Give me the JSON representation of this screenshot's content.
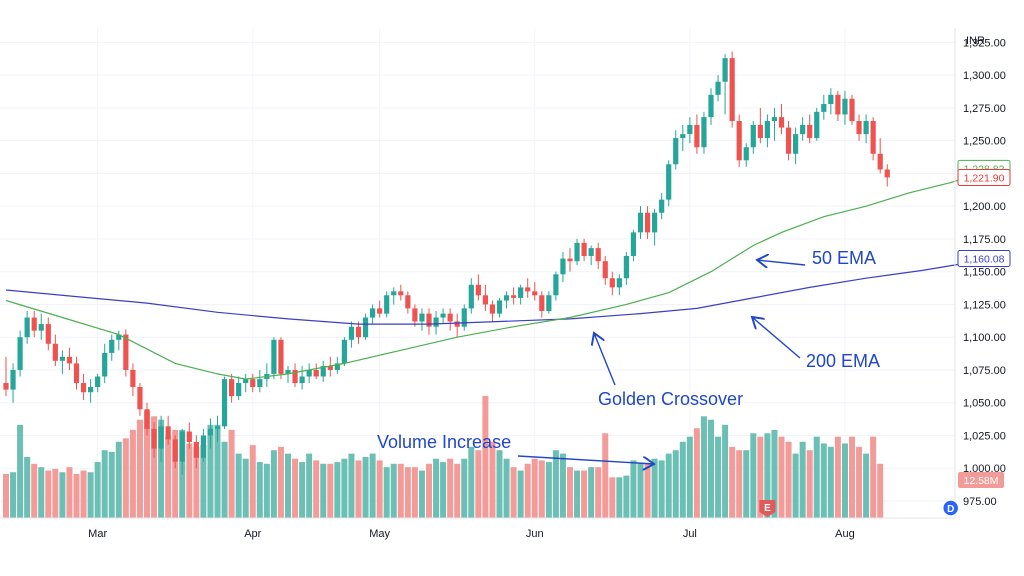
{
  "chart_data": {
    "type": "candlestick",
    "currency": "INR",
    "ylim": [
      962,
      1336
    ],
    "y_ticks": [
      "1,325.00",
      "1,300.00",
      "1,275.00",
      "1,250.00",
      "1,225.00",
      "1,200.00",
      "1,175.00",
      "1,150.00",
      "1,125.00",
      "1,100.00",
      "1,075.00",
      "1,050.00",
      "1,025.00",
      "1,000.00",
      "975.00"
    ],
    "y_tick_values": [
      1325,
      1300,
      1275,
      1250,
      1225,
      1200,
      1175,
      1150,
      1125,
      1100,
      1075,
      1050,
      1025,
      1000,
      975
    ],
    "x_ticks": [
      {
        "label": "Mar",
        "index": 13
      },
      {
        "label": "Apr",
        "index": 35
      },
      {
        "label": "May",
        "index": 53
      },
      {
        "label": "Jun",
        "index": 75
      },
      {
        "label": "Jul",
        "index": 97
      },
      {
        "label": "Aug",
        "index": 119
      }
    ],
    "candles": [
      [
        1065,
        1085,
        1055,
        1060
      ],
      [
        1060,
        1080,
        1050,
        1075
      ],
      [
        1075,
        1105,
        1070,
        1100
      ],
      [
        1100,
        1120,
        1095,
        1115
      ],
      [
        1115,
        1120,
        1100,
        1105
      ],
      [
        1105,
        1118,
        1098,
        1110
      ],
      [
        1110,
        1115,
        1090,
        1095
      ],
      [
        1095,
        1102,
        1078,
        1082
      ],
      [
        1082,
        1090,
        1072,
        1085
      ],
      [
        1085,
        1092,
        1075,
        1080
      ],
      [
        1080,
        1085,
        1060,
        1065
      ],
      [
        1065,
        1072,
        1052,
        1058
      ],
      [
        1058,
        1068,
        1050,
        1062
      ],
      [
        1062,
        1072,
        1058,
        1070
      ],
      [
        1070,
        1095,
        1065,
        1088
      ],
      [
        1088,
        1102,
        1082,
        1098
      ],
      [
        1098,
        1105,
        1090,
        1102
      ],
      [
        1102,
        1106,
        1070,
        1075
      ],
      [
        1075,
        1080,
        1055,
        1062
      ],
      [
        1062,
        1065,
        1040,
        1045
      ],
      [
        1045,
        1050,
        1025,
        1030
      ],
      [
        1030,
        1035,
        1008,
        1015
      ],
      [
        1015,
        1040,
        1005,
        1032
      ],
      [
        1032,
        1040,
        1018,
        1022
      ],
      [
        1022,
        1025,
        1000,
        1005
      ],
      [
        1005,
        1030,
        995,
        1028
      ],
      [
        1028,
        1035,
        1015,
        1020
      ],
      [
        1020,
        1025,
        1000,
        1008
      ],
      [
        1008,
        1030,
        1005,
        1025
      ],
      [
        1025,
        1038,
        1015,
        1030
      ],
      [
        1030,
        1040,
        1020,
        1032
      ],
      [
        1032,
        1070,
        1030,
        1068
      ],
      [
        1068,
        1072,
        1050,
        1055
      ],
      [
        1055,
        1070,
        1052,
        1065
      ],
      [
        1065,
        1072,
        1058,
        1068
      ],
      [
        1068,
        1072,
        1058,
        1062
      ],
      [
        1062,
        1075,
        1058,
        1068
      ],
      [
        1068,
        1080,
        1062,
        1072
      ],
      [
        1072,
        1100,
        1068,
        1098
      ],
      [
        1098,
        1100,
        1068,
        1072
      ],
      [
        1072,
        1078,
        1065,
        1075
      ],
      [
        1075,
        1080,
        1062,
        1065
      ],
      [
        1065,
        1078,
        1060,
        1070
      ],
      [
        1070,
        1080,
        1065,
        1075
      ],
      [
        1075,
        1080,
        1068,
        1070
      ],
      [
        1070,
        1082,
        1066,
        1078
      ],
      [
        1078,
        1085,
        1070,
        1075
      ],
      [
        1075,
        1085,
        1072,
        1080
      ],
      [
        1080,
        1100,
        1078,
        1098
      ],
      [
        1098,
        1112,
        1092,
        1108
      ],
      [
        1108,
        1112,
        1095,
        1100
      ],
      [
        1100,
        1118,
        1098,
        1115
      ],
      [
        1115,
        1125,
        1110,
        1122
      ],
      [
        1122,
        1128,
        1115,
        1118
      ],
      [
        1118,
        1135,
        1115,
        1132
      ],
      [
        1132,
        1138,
        1125,
        1135
      ],
      [
        1135,
        1140,
        1128,
        1132
      ],
      [
        1132,
        1135,
        1118,
        1122
      ],
      [
        1122,
        1125,
        1108,
        1112
      ],
      [
        1112,
        1122,
        1105,
        1118
      ],
      [
        1118,
        1122,
        1102,
        1108
      ],
      [
        1108,
        1120,
        1102,
        1115
      ],
      [
        1115,
        1122,
        1110,
        1118
      ],
      [
        1118,
        1122,
        1105,
        1112
      ],
      [
        1112,
        1118,
        1100,
        1108
      ],
      [
        1108,
        1125,
        1105,
        1122
      ],
      [
        1122,
        1145,
        1118,
        1140
      ],
      [
        1140,
        1148,
        1128,
        1132
      ],
      [
        1132,
        1140,
        1120,
        1125
      ],
      [
        1125,
        1128,
        1112,
        1118
      ],
      [
        1118,
        1130,
        1115,
        1128
      ],
      [
        1128,
        1135,
        1122,
        1132
      ],
      [
        1132,
        1138,
        1125,
        1130
      ],
      [
        1130,
        1140,
        1125,
        1138
      ],
      [
        1138,
        1145,
        1130,
        1135
      ],
      [
        1135,
        1142,
        1128,
        1132
      ],
      [
        1132,
        1135,
        1115,
        1120
      ],
      [
        1120,
        1135,
        1118,
        1132
      ],
      [
        1132,
        1150,
        1128,
        1148
      ],
      [
        1148,
        1165,
        1142,
        1160
      ],
      [
        1160,
        1168,
        1150,
        1158
      ],
      [
        1158,
        1175,
        1155,
        1172
      ],
      [
        1172,
        1175,
        1158,
        1162
      ],
      [
        1162,
        1170,
        1155,
        1168
      ],
      [
        1168,
        1172,
        1152,
        1158
      ],
      [
        1158,
        1162,
        1140,
        1145
      ],
      [
        1145,
        1150,
        1132,
        1138
      ],
      [
        1138,
        1148,
        1132,
        1145
      ],
      [
        1145,
        1165,
        1140,
        1162
      ],
      [
        1162,
        1182,
        1158,
        1180
      ],
      [
        1180,
        1200,
        1175,
        1195
      ],
      [
        1195,
        1200,
        1175,
        1180
      ],
      [
        1180,
        1198,
        1170,
        1195
      ],
      [
        1195,
        1210,
        1190,
        1205
      ],
      [
        1205,
        1235,
        1200,
        1232
      ],
      [
        1232,
        1258,
        1228,
        1252
      ],
      [
        1252,
        1262,
        1242,
        1255
      ],
      [
        1255,
        1268,
        1248,
        1262
      ],
      [
        1262,
        1270,
        1240,
        1245
      ],
      [
        1245,
        1272,
        1240,
        1268
      ],
      [
        1268,
        1290,
        1262,
        1285
      ],
      [
        1285,
        1300,
        1280,
        1295
      ],
      [
        1295,
        1316,
        1270,
        1313
      ],
      [
        1313,
        1318,
        1260,
        1265
      ],
      [
        1265,
        1270,
        1230,
        1235
      ],
      [
        1235,
        1248,
        1230,
        1245
      ],
      [
        1245,
        1265,
        1240,
        1262
      ],
      [
        1262,
        1275,
        1248,
        1252
      ],
      [
        1252,
        1270,
        1245,
        1265
      ],
      [
        1265,
        1275,
        1250,
        1268
      ],
      [
        1268,
        1278,
        1255,
        1260
      ],
      [
        1260,
        1265,
        1235,
        1240
      ],
      [
        1240,
        1260,
        1232,
        1255
      ],
      [
        1255,
        1268,
        1250,
        1262
      ],
      [
        1262,
        1270,
        1248,
        1252
      ],
      [
        1252,
        1275,
        1250,
        1272
      ],
      [
        1272,
        1285,
        1266,
        1278
      ],
      [
        1278,
        1290,
        1270,
        1285
      ],
      [
        1285,
        1288,
        1265,
        1270
      ],
      [
        1270,
        1288,
        1262,
        1282
      ],
      [
        1282,
        1285,
        1262,
        1265
      ],
      [
        1265,
        1270,
        1250,
        1255
      ],
      [
        1255,
        1270,
        1248,
        1265
      ],
      [
        1265,
        1268,
        1235,
        1240
      ],
      [
        1240,
        1252,
        1225,
        1228
      ],
      [
        1228,
        1232,
        1215,
        1222
      ]
    ],
    "volumes": [
      26,
      27,
      55,
      36,
      32,
      30,
      28,
      29,
      27,
      30,
      26,
      28,
      27,
      33,
      40,
      39,
      45,
      47,
      52,
      58,
      63,
      60,
      58,
      48,
      52,
      52,
      44,
      42,
      43,
      55,
      55,
      45,
      52,
      38,
      35,
      43,
      33,
      32,
      40,
      42,
      38,
      35,
      33,
      38,
      34,
      32,
      32,
      33,
      35,
      38,
      34,
      36,
      38,
      34,
      30,
      32,
      32,
      30,
      30,
      28,
      32,
      35,
      33,
      35,
      32,
      35,
      42,
      40,
      72,
      45,
      40,
      35,
      30,
      28,
      32,
      35,
      34,
      33,
      40,
      38,
      30,
      28,
      28,
      30,
      30,
      50,
      24,
      24,
      25,
      34,
      32,
      32,
      35,
      34,
      38,
      40,
      45,
      48,
      53,
      60,
      58,
      48,
      55,
      42,
      40,
      40,
      50,
      48,
      50,
      52,
      48,
      45,
      38,
      45,
      40,
      48,
      44,
      42,
      48,
      44,
      48,
      42,
      38,
      48,
      32
    ],
    "vol_max": 72,
    "ema50": [
      [
        0,
        1128
      ],
      [
        8,
        1115
      ],
      [
        16,
        1102
      ],
      [
        24,
        1080
      ],
      [
        30,
        1072
      ],
      [
        34,
        1068
      ],
      [
        40,
        1072
      ],
      [
        48,
        1080
      ],
      [
        56,
        1090
      ],
      [
        64,
        1100
      ],
      [
        72,
        1108
      ],
      [
        80,
        1115
      ],
      [
        88,
        1125
      ],
      [
        94,
        1134
      ],
      [
        100,
        1150
      ],
      [
        106,
        1170
      ],
      [
        110,
        1180
      ],
      [
        116,
        1192
      ],
      [
        122,
        1200
      ],
      [
        128,
        1210
      ],
      [
        134,
        1218
      ],
      [
        140,
        1228
      ]
    ],
    "ema200": [
      [
        0,
        1136
      ],
      [
        10,
        1131
      ],
      [
        20,
        1126
      ],
      [
        30,
        1119
      ],
      [
        40,
        1114
      ],
      [
        50,
        1110
      ],
      [
        60,
        1110
      ],
      [
        70,
        1112
      ],
      [
        80,
        1114
      ],
      [
        90,
        1118
      ],
      [
        98,
        1122
      ],
      [
        106,
        1130
      ],
      [
        114,
        1138
      ],
      [
        122,
        1145
      ],
      [
        130,
        1151
      ],
      [
        140,
        1160
      ]
    ],
    "price_labels": [
      {
        "text": "1,228.82",
        "value": 1228.82,
        "color": "#4caf50"
      },
      {
        "text": "1,221.90",
        "value": 1221.9,
        "color": "#e53935"
      },
      {
        "text": "1,160.08",
        "value": 1160.08,
        "color": "#3a3ec9"
      }
    ],
    "volume_label": "12.58M",
    "events": [
      {
        "label": "E",
        "index": 108,
        "color": "#e05a5a"
      },
      {
        "label": "D",
        "index": 134,
        "color": "#2962ff"
      }
    ],
    "annotations": [
      {
        "text": "50 EMA"
      },
      {
        "text": "200 EMA"
      },
      {
        "text": "Golden Crossover"
      },
      {
        "text": "Volume Increase"
      }
    ],
    "colors": {
      "up": "#26a69a",
      "down": "#ef5350",
      "upVol": "#6cbfb4",
      "downVol": "#f39b98",
      "ema50": "#4caf50",
      "ema200": "#3a3ec9",
      "annotation": "#1f47c7"
    }
  }
}
